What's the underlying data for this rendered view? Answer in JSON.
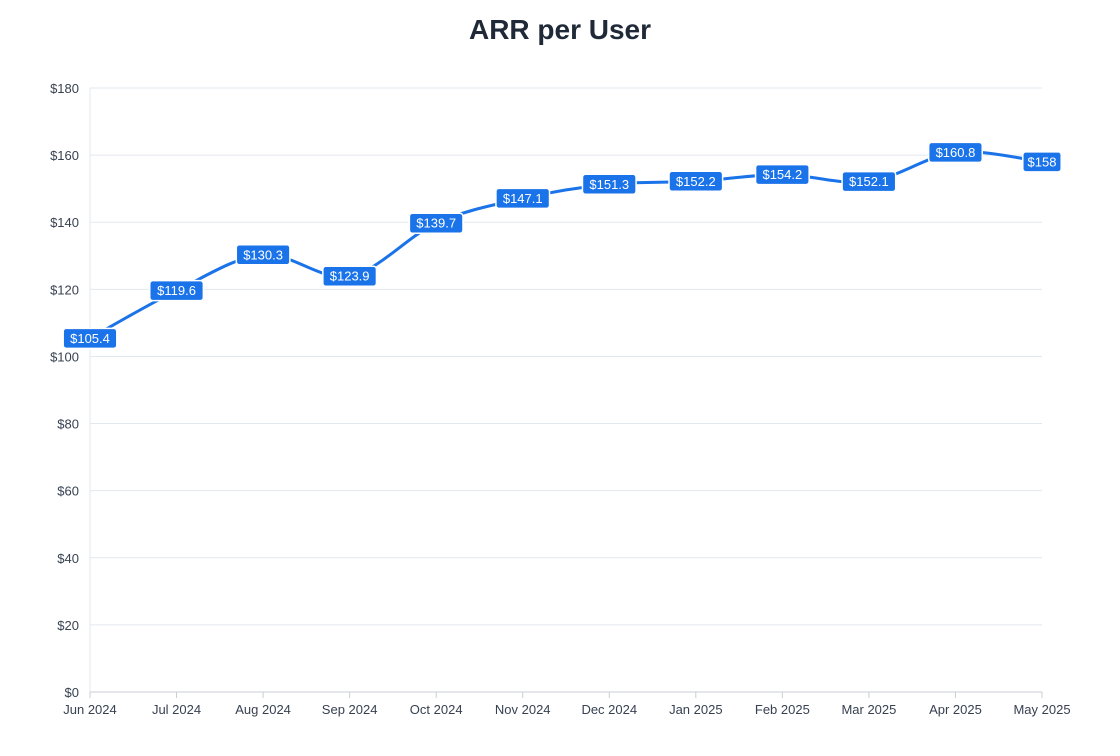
{
  "chart_data": {
    "type": "line",
    "title": "ARR per User",
    "xlabel": "",
    "ylabel": "",
    "categories": [
      "Jun 2024",
      "Jul 2024",
      "Aug 2024",
      "Sep 2024",
      "Oct 2024",
      "Nov 2024",
      "Dec 2024",
      "Jan 2025",
      "Feb 2025",
      "Mar 2025",
      "Apr 2025",
      "May 2025"
    ],
    "series": [
      {
        "values": [
          105.4,
          119.6,
          130.3,
          123.9,
          139.7,
          147.1,
          151.3,
          152.2,
          154.2,
          152.1,
          160.8,
          158
        ],
        "data_labels": [
          "$105.4",
          "$119.6",
          "$130.3",
          "$123.9",
          "$139.7",
          "$147.1",
          "$151.3",
          "$152.2",
          "$154.2",
          "$152.1",
          "$160.8",
          "$158"
        ]
      }
    ],
    "ylim": [
      0,
      180
    ],
    "yticks": [
      0,
      20,
      40,
      60,
      80,
      100,
      120,
      140,
      160,
      180
    ],
    "ytick_labels": [
      "$0",
      "$20",
      "$40",
      "$60",
      "$80",
      "$100",
      "$120",
      "$140",
      "$160",
      "$180"
    ],
    "grid": true,
    "legend": "none",
    "colors": {
      "line": "#1a73e8",
      "label_bg": "#1a73e8",
      "label_text": "#ffffff",
      "grid": "#e3e8ef",
      "axis": "#c8ced6",
      "tick_text": "#374151",
      "title": "#1f2937"
    }
  }
}
